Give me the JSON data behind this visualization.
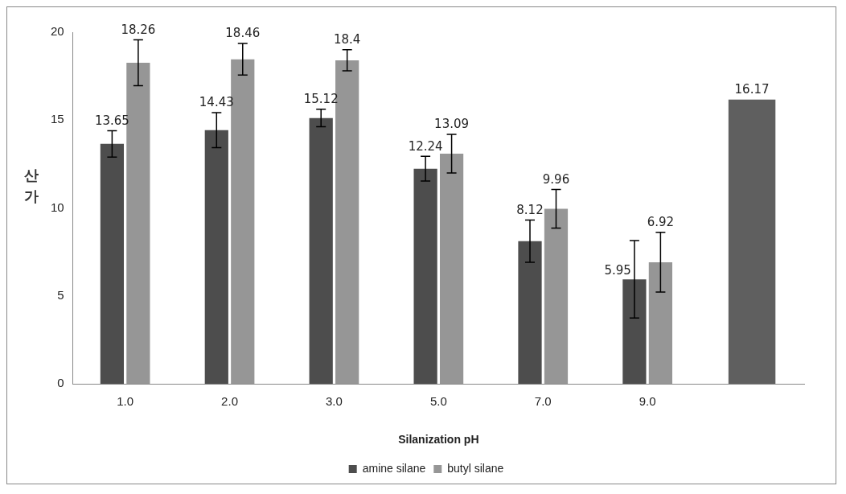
{
  "chart_data": {
    "type": "bar",
    "xlabel": "Silanization pH",
    "ylabel": "산가",
    "categories": [
      "1.0",
      "2.0",
      "3.0",
      "5.0",
      "7.0",
      "9.0",
      null
    ],
    "series": [
      {
        "name": "amine silane",
        "color": "#4d4d4d",
        "values": [
          13.65,
          14.43,
          15.12,
          12.24,
          8.12,
          5.95,
          null
        ],
        "errors": [
          0.75,
          1,
          0.5,
          0.7,
          1.2,
          2.2,
          null
        ]
      },
      {
        "name": "butyl silane",
        "color": "#969696",
        "values": [
          18.26,
          18.46,
          18.4,
          13.09,
          9.96,
          6.92,
          null
        ],
        "errors": [
          1.3,
          0.9,
          0.6,
          1.1,
          1.1,
          1.7,
          null
        ]
      },
      {
        "color": "#5f5f5f",
        "values": [
          null,
          null,
          null,
          null,
          null,
          null,
          16.17
        ]
      }
    ],
    "ylim": [
      0,
      20
    ],
    "yticks": [
      0,
      5,
      10,
      15,
      20
    ],
    "grid": false,
    "legend": "bottom",
    "data_labels": true
  }
}
